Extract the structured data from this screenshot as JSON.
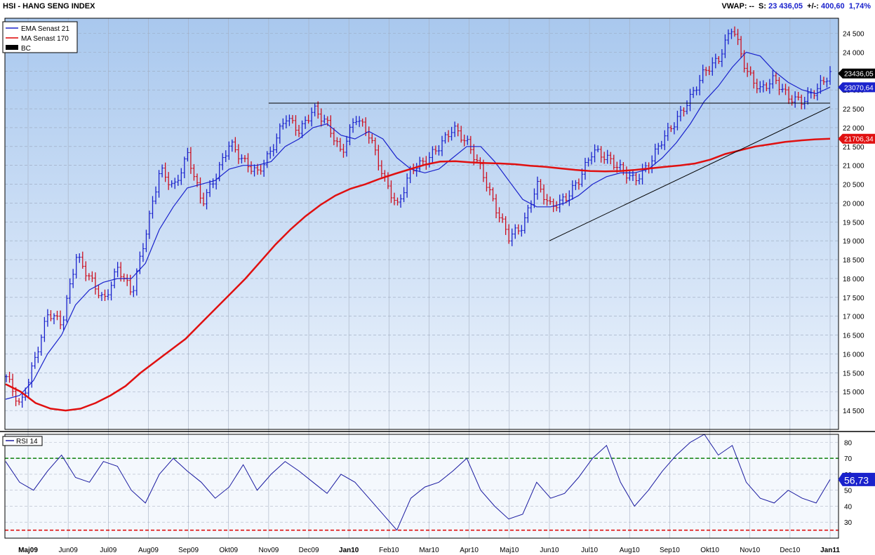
{
  "header": {
    "title": "HSI - HANG SENG INDEX",
    "vwap_label": "VWAP: --",
    "s_label": "S:",
    "s_value": "23 436,05",
    "change_label": "+/-:",
    "change_value": "400,60",
    "change_pct": "1,74%"
  },
  "legend": [
    {
      "label": "EMA  Senast 21",
      "color": "#1a22cc"
    },
    {
      "label": "MA  Senast 170",
      "color": "#dd0000"
    },
    {
      "label": "BC",
      "color": "#000000"
    }
  ],
  "rsi_legend": "RSI  14",
  "colors": {
    "up_bar": "#1a22cc",
    "down_bar": "#cc1020",
    "ema": "#1a22cc",
    "ma": "#e01010",
    "rsi": "#1a1aa0",
    "bg_top": "#a9c8ee",
    "bg_bottom": "#eef4fc",
    "overbought_line": "#1f8a1f",
    "oversold_line": "#dd0000"
  },
  "chart_data": [
    {
      "type": "line",
      "name": "price-panel",
      "x_ticks": [
        "Maj09",
        "Jun09",
        "Jul09",
        "Aug09",
        "Sep09",
        "Okt09",
        "Nov09",
        "Dec09",
        "Jan10",
        "Feb10",
        "Mar10",
        "Apr10",
        "Maj10",
        "Jun10",
        "Jul10",
        "Aug10",
        "Sep10",
        "Okt10",
        "Nov10",
        "Dec10",
        "Jan11"
      ],
      "y_ticks": [
        "14 500",
        "15 000",
        "15 500",
        "16 000",
        "16 500",
        "17 000",
        "17 500",
        "18 000",
        "18 500",
        "19 000",
        "19 500",
        "20 000",
        "20 500",
        "21 000",
        "21 500",
        "22 000",
        "22 500",
        "23 000",
        "23 500",
        "24 000",
        "24 500"
      ],
      "ylim": [
        14000,
        24900
      ],
      "grid": true,
      "legend_position": "top-left",
      "price_close": [
        15400,
        14600,
        15800,
        17100,
        16800,
        18600,
        18000,
        17400,
        18300,
        17600,
        19200,
        20900,
        20400,
        21300,
        20000,
        20700,
        21600,
        21100,
        20800,
        21400,
        22300,
        21900,
        22500,
        22100,
        21300,
        22300,
        21800,
        20700,
        19900,
        20900,
        21100,
        21500,
        22000,
        21600,
        20900,
        19900,
        19100,
        19400,
        20500,
        19900,
        20100,
        20600,
        21400,
        21200,
        20900,
        20600,
        21000,
        21700,
        22200,
        22800,
        23500,
        23800,
        24700,
        23500,
        23000,
        23300,
        22800,
        22700,
        23000,
        23436.05
      ],
      "series": [
        {
          "name": "EMA  Senast 21",
          "last_value": "23070,64",
          "values": [
            14800,
            14900,
            15300,
            16000,
            16500,
            17300,
            17700,
            17900,
            18000,
            18000,
            18400,
            19300,
            19900,
            20400,
            20500,
            20600,
            20900,
            21000,
            21000,
            21100,
            21500,
            21700,
            22000,
            22100,
            21800,
            21700,
            21900,
            21700,
            21200,
            20900,
            20800,
            20900,
            21200,
            21500,
            21500,
            21100,
            20600,
            20100,
            19900,
            19900,
            20000,
            20200,
            20500,
            20700,
            20800,
            20800,
            20900,
            21200,
            21600,
            22100,
            22700,
            23100,
            23600,
            24000,
            23900,
            23500,
            23200,
            23000,
            22900,
            23070.64
          ]
        },
        {
          "name": "MA  Senast 170",
          "last_value": "21706,34",
          "values": [
            15200,
            15000,
            14700,
            14550,
            14500,
            14550,
            14700,
            14900,
            15150,
            15500,
            15800,
            16100,
            16400,
            16800,
            17200,
            17600,
            18000,
            18450,
            18900,
            19300,
            19650,
            19950,
            20200,
            20380,
            20500,
            20650,
            20780,
            20900,
            21020,
            21100,
            21110,
            21080,
            21060,
            21050,
            21030,
            20990,
            20960,
            20920,
            20880,
            20850,
            20840,
            20850,
            20880,
            20920,
            20960,
            21000,
            21050,
            21150,
            21300,
            21400,
            21500,
            21560,
            21620,
            21660,
            21690,
            21706.34
          ]
        }
      ],
      "last_price_label": "23436,05",
      "trend_lines": [
        {
          "from": [
            "Nov09",
            22650
          ],
          "to": [
            "Jan11",
            22650
          ]
        },
        {
          "from": [
            "Jun10",
            19000
          ],
          "to": [
            "Jan11",
            22550
          ]
        }
      ]
    },
    {
      "type": "line",
      "name": "rsi-panel",
      "series_label": "RSI  14",
      "y_ticks": [
        "30",
        "40",
        "50",
        "60",
        "70",
        "80"
      ],
      "ylim": [
        20,
        85
      ],
      "overbought": 70,
      "oversold": 25,
      "last_value": "56,73",
      "values": [
        68,
        55,
        50,
        62,
        72,
        58,
        55,
        68,
        65,
        50,
        42,
        60,
        70,
        62,
        55,
        45,
        52,
        66,
        50,
        60,
        68,
        62,
        55,
        48,
        60,
        55,
        45,
        35,
        25,
        45,
        52,
        55,
        62,
        70,
        50,
        40,
        32,
        35,
        55,
        45,
        48,
        58,
        70,
        78,
        55,
        40,
        50,
        62,
        72,
        80,
        85,
        72,
        78,
        55,
        45,
        42,
        50,
        45,
        42,
        56.73
      ]
    }
  ]
}
